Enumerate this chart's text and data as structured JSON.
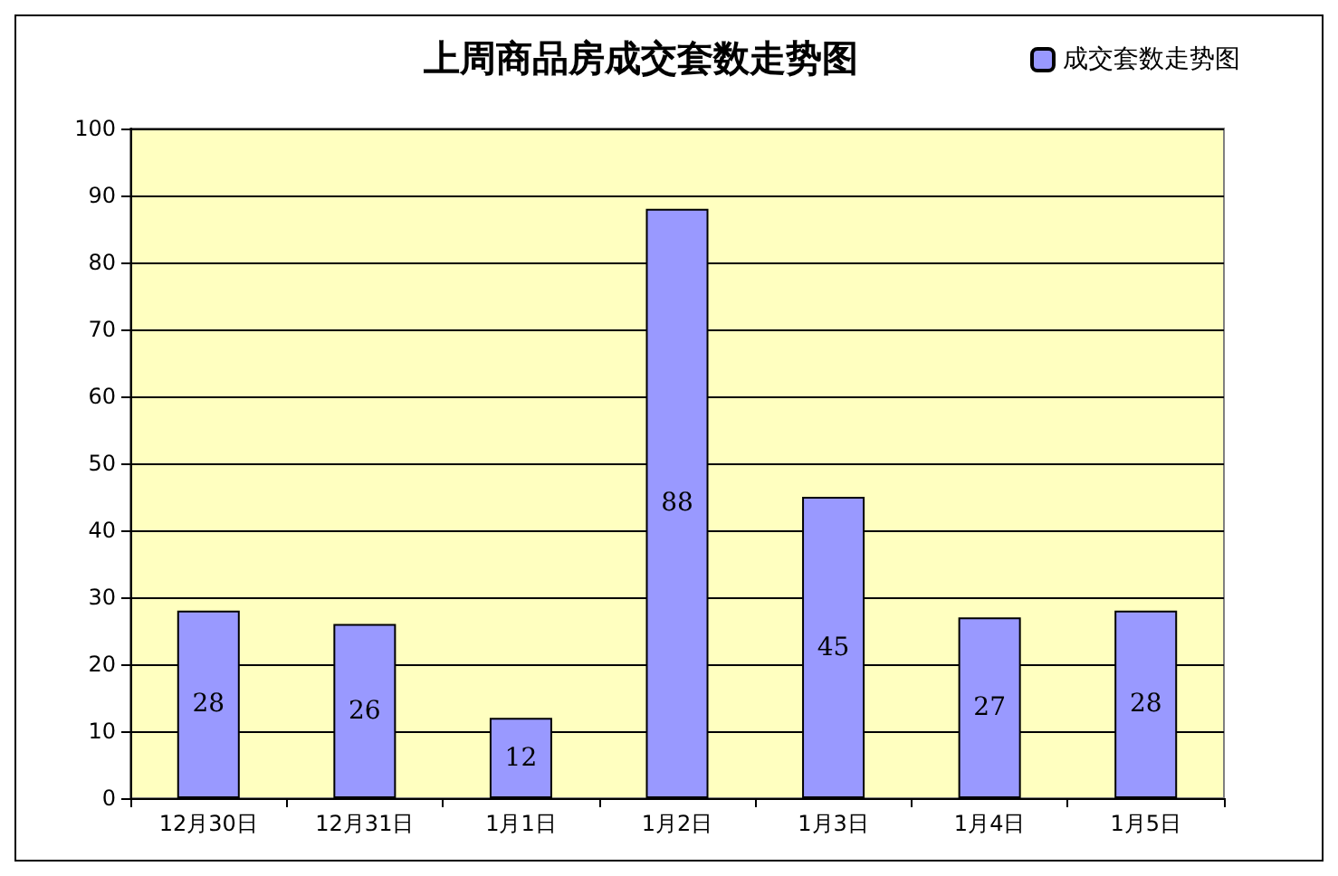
{
  "chart_data": {
    "type": "bar",
    "title": "上周商品房成交套数走势图",
    "categories": [
      "12月30日",
      "12月31日",
      "1月1日",
      "1月2日",
      "1月3日",
      "1月4日",
      "1月5日"
    ],
    "series": [
      {
        "name": "成交套数走势图",
        "color": "#9999ff",
        "values": [
          28,
          26,
          12,
          88,
          45,
          27,
          28
        ]
      }
    ],
    "ylim": [
      0,
      100
    ],
    "yticks": [
      0,
      10,
      20,
      30,
      40,
      50,
      60,
      70,
      80,
      90,
      100
    ],
    "grid": "y",
    "legend": "top right",
    "data_labels": true
  }
}
